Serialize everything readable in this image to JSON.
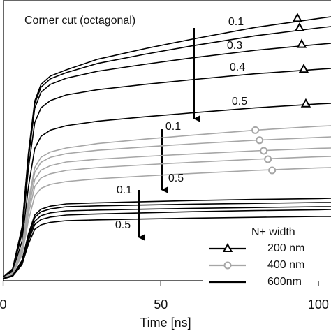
{
  "chart_data": {
    "type": "line",
    "xlabel": "Time [ns]",
    "x": [
      0,
      3,
      6,
      8,
      10,
      12,
      15,
      20,
      30,
      45,
      60,
      80,
      100,
      104
    ],
    "xlim": [
      -1,
      104
    ],
    "ylim": [
      0,
      100
    ],
    "xticks": [
      0,
      50,
      100
    ],
    "legend_title": "N+ width",
    "annotations": [
      "Corner cut (octagonal)",
      "0.1",
      "0.3",
      "0.4",
      "0.5",
      "0.1",
      "0.5",
      "0.1",
      "0.5"
    ],
    "series": [
      {
        "name": "200 nm",
        "color": "#000000",
        "marker": "triangle",
        "curves": [
          [
            0.8,
            3.8,
            18.8,
            45,
            63.8,
            69.8,
            72.8,
            75,
            78.8,
            82.6,
            86,
            90.2,
            93.4,
            94
          ],
          [
            0.7,
            3.7,
            18.5,
            44.4,
            62.9,
            68.8,
            71.8,
            74,
            77.3,
            80.6,
            83.6,
            87.2,
            90,
            90.5
          ],
          [
            0.7,
            3.6,
            18,
            43.2,
            61.2,
            67,
            69.8,
            72,
            74.5,
            77,
            79.3,
            82,
            84.1,
            84.5
          ],
          [
            0.7,
            3.3,
            16.5,
            39.6,
            56.1,
            61.4,
            64,
            66,
            67.9,
            69.8,
            71.5,
            73.6,
            75.2,
            75.5
          ],
          [
            0.6,
            2.8,
            13.8,
            33,
            46.8,
            51.2,
            53.4,
            55,
            56.6,
            58.2,
            59.6,
            61.4,
            62.8,
            63
          ]
        ]
      },
      {
        "name": "400 nm",
        "color": "#a6a6a6",
        "marker": "circle",
        "curves": [
          [
            0.5,
            2.4,
            11.8,
            28.2,
            40,
            43.7,
            45.6,
            47,
            48.6,
            50.2,
            51.6,
            53.4,
            54.8,
            55
          ],
          [
            0.5,
            2.3,
            11.3,
            27,
            38.3,
            41.9,
            43.7,
            45,
            46.2,
            47.4,
            48.5,
            49.8,
            50.8,
            51
          ],
          [
            0.4,
            2.1,
            10.5,
            25.2,
            35.7,
            39.1,
            40.7,
            42,
            43,
            44,
            44.9,
            46,
            46.9,
            47
          ],
          [
            0.4,
            2,
            9.8,
            23.4,
            33.2,
            36.3,
            37.8,
            39,
            40,
            41,
            41.9,
            43,
            43.9,
            44
          ],
          [
            0.4,
            1.8,
            8.8,
            21,
            29.8,
            32.6,
            34,
            35,
            36,
            37,
            37.9,
            39,
            39.9,
            40
          ]
        ]
      },
      {
        "name": "600nm",
        "color": "#000000",
        "marker": "none",
        "curves": [
          [
            0.3,
            1.4,
            6.8,
            16.2,
            23,
            25.1,
            26.2,
            27,
            27.4,
            27.8,
            28.2,
            28.6,
            28.9,
            29
          ],
          [
            0.3,
            1.3,
            6.5,
            15.6,
            22.1,
            24.2,
            25.2,
            26,
            26.3,
            26.6,
            26.9,
            27.2,
            27.5,
            27.5
          ],
          [
            0.2,
            1.2,
            6.1,
            14.7,
            20.8,
            22.8,
            23.8,
            24.5,
            24.8,
            25.1,
            25.4,
            25.7,
            26,
            26
          ],
          [
            0.2,
            1.2,
            5.8,
            13.8,
            19.6,
            21.4,
            22.3,
            23,
            23.4,
            23.8,
            24.2,
            24.6,
            24.9,
            25
          ],
          [
            0.2,
            1.1,
            5.3,
            12.6,
            17.9,
            19.5,
            20.4,
            21,
            21.3,
            21.6,
            21.9,
            22.2,
            22.5,
            22.5
          ]
        ]
      }
    ]
  }
}
